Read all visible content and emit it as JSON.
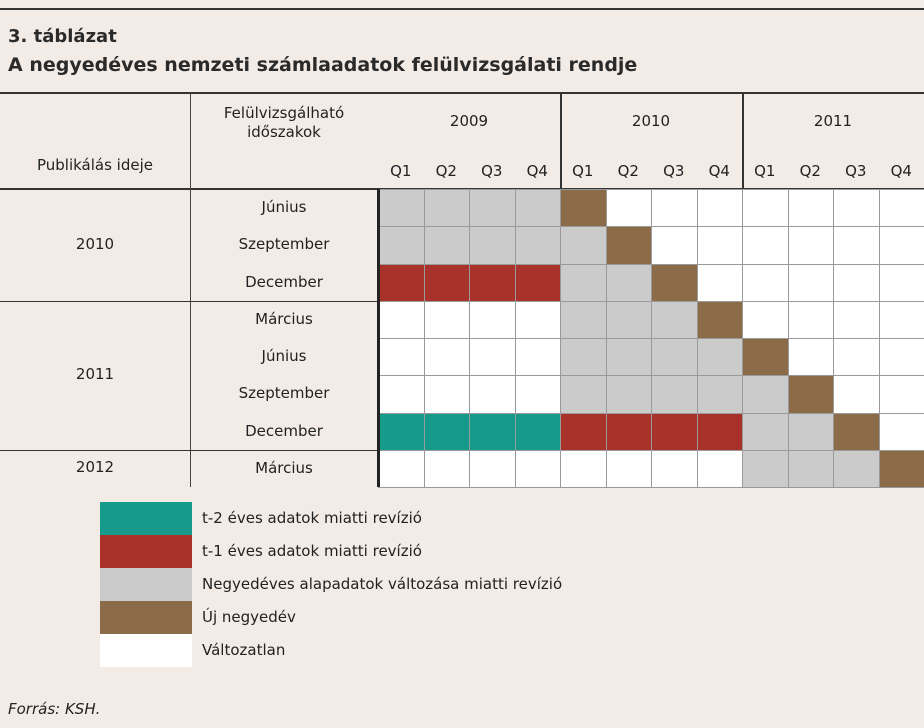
{
  "title": {
    "number": "3. táblázat",
    "text": "A negyedéves nemzeti számlaadatok felülvizsgálati rendje"
  },
  "table": {
    "header": {
      "publication": "Publikálás ideje",
      "periods": "Felülvizsgálható időszakok",
      "years": [
        "2009",
        "2010",
        "2011"
      ],
      "quarters": [
        "Q1",
        "Q2",
        "Q3",
        "Q4",
        "Q1",
        "Q2",
        "Q3",
        "Q4",
        "Q1",
        "Q2",
        "Q3",
        "Q4"
      ]
    },
    "groups": [
      {
        "year": "2010",
        "rows": [
          {
            "month": "Június",
            "cells": [
              2,
              2,
              2,
              2,
              3,
              4,
              4,
              4,
              4,
              4,
              4,
              4
            ]
          },
          {
            "month": "Szeptember",
            "cells": [
              2,
              2,
              2,
              2,
              2,
              3,
              4,
              4,
              4,
              4,
              4,
              4
            ]
          },
          {
            "month": "December",
            "cells": [
              1,
              1,
              1,
              1,
              2,
              2,
              3,
              4,
              4,
              4,
              4,
              4
            ]
          }
        ]
      },
      {
        "year": "2011",
        "rows": [
          {
            "month": "Március",
            "cells": [
              4,
              4,
              4,
              4,
              2,
              2,
              2,
              3,
              4,
              4,
              4,
              4
            ]
          },
          {
            "month": "Június",
            "cells": [
              4,
              4,
              4,
              4,
              2,
              2,
              2,
              2,
              3,
              4,
              4,
              4
            ]
          },
          {
            "month": "Szeptember",
            "cells": [
              4,
              4,
              4,
              4,
              2,
              2,
              2,
              2,
              2,
              3,
              4,
              4
            ]
          },
          {
            "month": "December",
            "cells": [
              0,
              0,
              0,
              0,
              1,
              1,
              1,
              1,
              2,
              2,
              3,
              4
            ]
          }
        ]
      },
      {
        "year": "2012",
        "rows": [
          {
            "month": "Március",
            "cells": [
              4,
              4,
              4,
              4,
              4,
              4,
              4,
              4,
              2,
              2,
              2,
              3
            ]
          }
        ]
      }
    ]
  },
  "legend": [
    {
      "label": "t-2 éves adatok miatti revízió",
      "color": "#169a8b"
    },
    {
      "label": "t-1 éves adatok miatti revízió",
      "color": "#a8322a"
    },
    {
      "label": "Negyedéves alapadatok változása miatti revízió",
      "color": "#cbcbcb"
    },
    {
      "label": "Új negyedév",
      "color": "#8b6b48"
    },
    {
      "label": "Változatlan",
      "color": "#ffffff"
    }
  ],
  "source": "Forrás: KSH."
}
